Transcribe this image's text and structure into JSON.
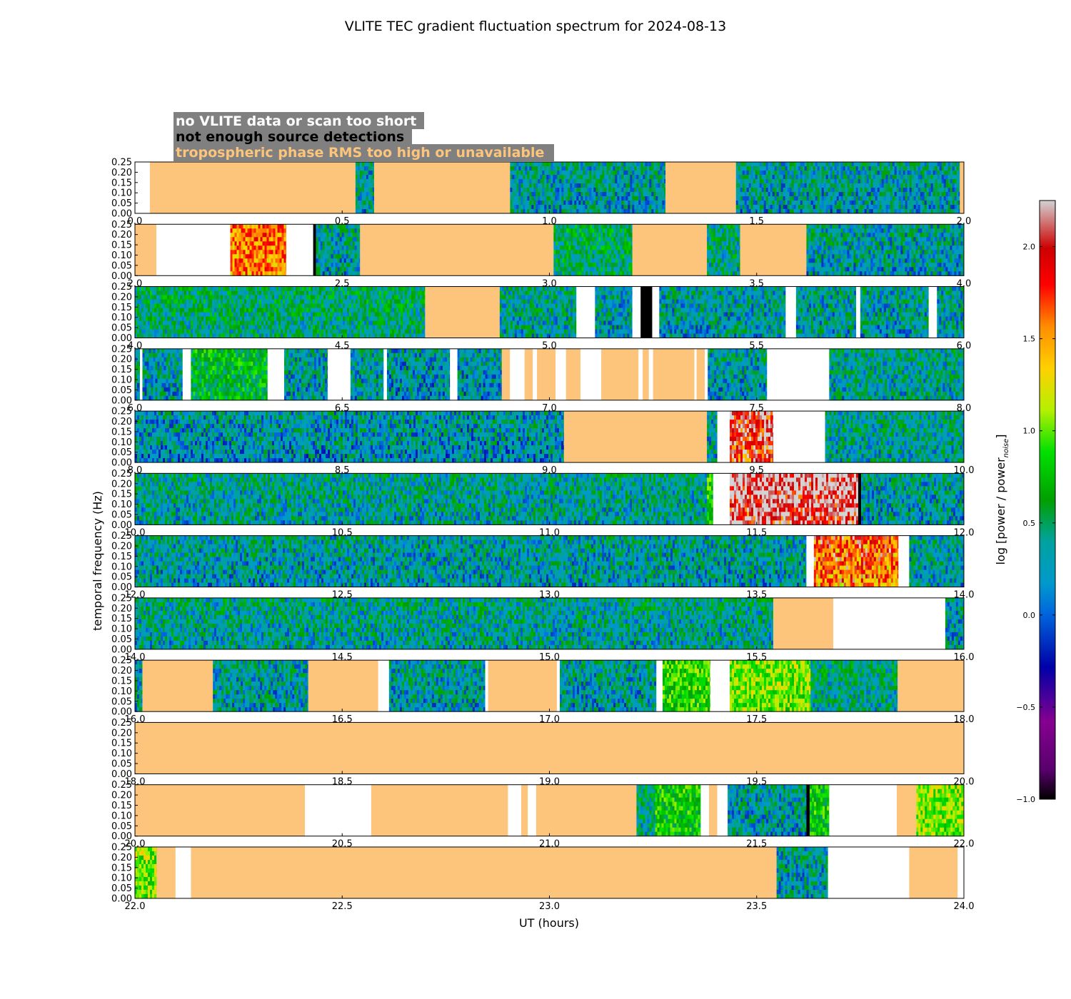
{
  "chart_data": {
    "type": "heatmap",
    "title": "VLITE TEC gradient fluctuation spectrum for 2024-08-13",
    "xlabel": "UT (hours)",
    "ylabel": "temporal frequency (Hz)",
    "colorbar_label": "log [power / power",
    "colorbar_label_subscript": "noise",
    "colorbar_label_close": "]",
    "colorbar_range": [
      -1.0,
      2.25
    ],
    "colorbar_ticks": [
      "−1.0",
      "−0.5",
      "0.0",
      "0.5",
      "1.0",
      "1.5",
      "2.0"
    ],
    "colorbar_tick_values": [
      -1.0,
      -0.5,
      0.0,
      0.5,
      1.0,
      1.5,
      2.0
    ],
    "ylim": [
      0,
      0.25
    ],
    "y_ticks": [
      "0.25",
      "0.20",
      "0.15",
      "0.10",
      "0.05",
      "0.00"
    ],
    "y_tick_values": [
      0.25,
      0.2,
      0.15,
      0.1,
      0.05,
      0.0
    ],
    "legend": [
      {
        "label": "no VLITE data or scan too short",
        "color": "#ffffff",
        "flag": "nodata"
      },
      {
        "label": "not enough source detections",
        "color": "#000000",
        "flag": "nodet"
      },
      {
        "label": "tropospheric phase RMS too high or unavailable",
        "color": "#fdc47c",
        "flag": "tropo"
      }
    ],
    "legend_background": "#808080",
    "flag_colors": {
      "nodata": "#ffffff",
      "nodet": "#000000",
      "tropo": "#fdc47c"
    },
    "panels": [
      {
        "xlim": [
          0,
          2
        ],
        "xticks": [
          "0.0",
          "0.5",
          "1.0",
          "1.5",
          "2.0"
        ],
        "segments": [
          [
            "nodata",
            0,
            0.036
          ],
          [
            "tropo",
            0.036,
            0.532
          ],
          [
            "spec",
            0.532,
            0.577,
            0.1
          ],
          [
            "tropo",
            0.577,
            0.905
          ],
          [
            "spec",
            0.905,
            1.28,
            0.1
          ],
          [
            "tropo",
            1.28,
            1.45
          ],
          [
            "spec",
            1.45,
            1.99,
            0.1
          ],
          [
            "tropo",
            1.99,
            2.0
          ]
        ]
      },
      {
        "xlim": [
          2,
          4
        ],
        "xticks": [
          "2.0",
          "2.5",
          "3.0",
          "3.5",
          "4.0"
        ],
        "segments": [
          [
            "tropo",
            2.0,
            2.052
          ],
          [
            "nodata",
            2.052,
            2.23
          ],
          [
            "spec",
            2.23,
            2.365,
            1.5
          ],
          [
            "nodata",
            2.365,
            2.43
          ],
          [
            "nodet",
            2.43,
            2.437
          ],
          [
            "spec",
            2.437,
            2.543,
            0.1
          ],
          [
            "tropo",
            2.543,
            3.01
          ],
          [
            "spec",
            3.01,
            3.2,
            0.3
          ],
          [
            "tropo",
            3.2,
            3.38
          ],
          [
            "spec",
            3.38,
            3.46,
            0.2
          ],
          [
            "tropo",
            3.46,
            3.62
          ],
          [
            "spec",
            3.62,
            4.0,
            0.1
          ]
        ]
      },
      {
        "xlim": [
          4,
          6
        ],
        "xticks": [
          "4.0",
          "4.5",
          "5.0",
          "5.5",
          "6.0"
        ],
        "segments": [
          [
            "spec",
            4.0,
            4.7,
            0.25
          ],
          [
            "tropo",
            4.7,
            4.88
          ],
          [
            "spec",
            4.88,
            5.065,
            0.15
          ],
          [
            "nodata",
            5.065,
            5.11
          ],
          [
            "spec",
            5.11,
            5.2,
            0.1
          ],
          [
            "nodata",
            5.2,
            5.22
          ],
          [
            "nodet",
            5.22,
            5.248
          ],
          [
            "nodata",
            5.248,
            5.265
          ],
          [
            "spec",
            5.265,
            5.57,
            0.1
          ],
          [
            "nodata",
            5.57,
            5.595
          ],
          [
            "spec",
            5.595,
            5.74,
            0.1
          ],
          [
            "nodata",
            5.74,
            5.75
          ],
          [
            "spec",
            5.75,
            5.915,
            0.1
          ],
          [
            "nodata",
            5.915,
            5.935
          ],
          [
            "spec",
            5.935,
            6.0,
            0.1
          ]
        ]
      },
      {
        "xlim": [
          6,
          8
        ],
        "xticks": [
          "6.0",
          "6.5",
          "7.0",
          "7.5",
          "8.0"
        ],
        "segments": [
          [
            "spec",
            6.0,
            6.012,
            0.1
          ],
          [
            "nodata",
            6.012,
            6.018
          ],
          [
            "spec",
            6.018,
            6.115,
            0.1
          ],
          [
            "nodata",
            6.115,
            6.135
          ],
          [
            "spec",
            6.135,
            6.32,
            0.45
          ],
          [
            "nodata",
            6.32,
            6.36
          ],
          [
            "spec",
            6.36,
            6.465,
            0.1
          ],
          [
            "nodata",
            6.465,
            6.52
          ],
          [
            "spec",
            6.52,
            6.6,
            0.1
          ],
          [
            "nodata",
            6.6,
            6.608
          ],
          [
            "spec",
            6.608,
            6.76,
            0.05
          ],
          [
            "nodata",
            6.76,
            6.778
          ],
          [
            "spec",
            6.778,
            6.885,
            0.05
          ],
          [
            "tropo",
            6.885,
            6.905
          ],
          [
            "nodata",
            6.905,
            6.94
          ],
          [
            "tropo",
            6.94,
            6.96
          ],
          [
            "nodata",
            6.96,
            6.97
          ],
          [
            "tropo",
            6.97,
            7.015
          ],
          [
            "nodata",
            7.015,
            7.04
          ],
          [
            "tropo",
            7.04,
            7.075
          ],
          [
            "nodata",
            7.075,
            7.125
          ],
          [
            "tropo",
            7.125,
            7.215
          ],
          [
            "nodata",
            7.215,
            7.225
          ],
          [
            "tropo",
            7.225,
            7.24
          ],
          [
            "nodata",
            7.24,
            7.25
          ],
          [
            "tropo",
            7.25,
            7.35
          ],
          [
            "nodata",
            7.35,
            7.355
          ],
          [
            "tropo",
            7.355,
            7.375
          ],
          [
            "nodata",
            7.375,
            7.382
          ],
          [
            "spec",
            7.382,
            7.525,
            0.1
          ],
          [
            "nodata",
            7.525,
            7.675
          ],
          [
            "spec",
            7.675,
            8.0,
            0.15
          ]
        ]
      },
      {
        "xlim": [
          8,
          10
        ],
        "xticks": [
          "8.0",
          "8.5",
          "9.0",
          "9.5",
          "10.0"
        ],
        "segments": [
          [
            "spec",
            8.0,
            9.035,
            0.05
          ],
          [
            "tropo",
            9.035,
            9.38
          ],
          [
            "spec",
            9.38,
            9.405,
            0.1
          ],
          [
            "nodata",
            9.405,
            9.435
          ],
          [
            "spec",
            9.435,
            9.54,
            1.7,
            "hot"
          ],
          [
            "nodata",
            9.54,
            9.665
          ],
          [
            "spec",
            9.665,
            10.0,
            0.15
          ]
        ]
      },
      {
        "xlim": [
          10,
          12
        ],
        "xticks": [
          "10.0",
          "10.5",
          "11.0",
          "11.5",
          "12.0"
        ],
        "segments": [
          [
            "spec",
            10.0,
            11.38,
            0.15
          ],
          [
            "spec",
            11.38,
            11.395,
            0.6
          ],
          [
            "nodata",
            11.395,
            11.435
          ],
          [
            "spec",
            11.435,
            11.745,
            1.9,
            "hot"
          ],
          [
            "nodet",
            11.745,
            11.752
          ],
          [
            "spec",
            11.752,
            12.0,
            0.1
          ]
        ]
      },
      {
        "xlim": [
          12,
          14
        ],
        "xticks": [
          "12.0",
          "12.5",
          "13.0",
          "13.5",
          "14.0"
        ],
        "segments": [
          [
            "spec",
            12.0,
            13.62,
            0.1
          ],
          [
            "nodata",
            13.62,
            13.638
          ],
          [
            "spec",
            13.638,
            13.842,
            1.4,
            "hot"
          ],
          [
            "nodata",
            13.842,
            13.868
          ],
          [
            "spec",
            13.868,
            14.0,
            0.1
          ]
        ]
      },
      {
        "xlim": [
          14,
          16
        ],
        "xticks": [
          "14.0",
          "14.5",
          "15.0",
          "15.5",
          "16.0"
        ],
        "segments": [
          [
            "spec",
            14.0,
            15.54,
            0.15
          ],
          [
            "tropo",
            15.54,
            15.685
          ],
          [
            "nodata",
            15.685,
            15.955
          ],
          [
            "spec",
            15.955,
            16.0,
            0.1
          ]
        ]
      },
      {
        "xlim": [
          16,
          18
        ],
        "xticks": [
          "16.0",
          "16.5",
          "17.0",
          "17.5",
          "18.0"
        ],
        "segments": [
          [
            "spec",
            16.0,
            16.018,
            0.1
          ],
          [
            "tropo",
            16.018,
            16.188
          ],
          [
            "spec",
            16.188,
            16.418,
            0.1
          ],
          [
            "tropo",
            16.418,
            16.587
          ],
          [
            "nodata",
            16.587,
            16.613
          ],
          [
            "spec",
            16.613,
            16.845,
            0.1
          ],
          [
            "nodata",
            16.845,
            16.852
          ],
          [
            "tropo",
            16.852,
            17.018
          ],
          [
            "nodata",
            17.018,
            17.025
          ],
          [
            "spec",
            17.025,
            17.258,
            0.1
          ],
          [
            "nodata",
            17.258,
            17.273
          ],
          [
            "spec",
            17.273,
            17.388,
            0.7
          ],
          [
            "nodata",
            17.388,
            17.435
          ],
          [
            "spec",
            17.435,
            17.63,
            0.9
          ],
          [
            "spec",
            17.63,
            17.84,
            0.2
          ],
          [
            "tropo",
            17.84,
            18.0
          ]
        ]
      },
      {
        "xlim": [
          18,
          20
        ],
        "xticks": [
          "18.0",
          "18.5",
          "19.0",
          "19.5",
          "20.0"
        ],
        "segments": [
          [
            "tropo",
            18.0,
            20.0
          ]
        ]
      },
      {
        "xlim": [
          20,
          22
        ],
        "xticks": [
          "20.0",
          "20.5",
          "21.0",
          "21.5",
          "22.0"
        ],
        "segments": [
          [
            "tropo",
            20.0,
            20.41
          ],
          [
            "nodata",
            20.41,
            20.57
          ],
          [
            "tropo",
            20.57,
            20.9
          ],
          [
            "nodata",
            20.9,
            20.932
          ],
          [
            "tropo",
            20.932,
            20.948
          ],
          [
            "nodata",
            20.948,
            20.968
          ],
          [
            "tropo",
            20.968,
            21.21
          ],
          [
            "spec",
            21.21,
            21.255,
            0.2
          ],
          [
            "spec",
            21.255,
            21.365,
            0.6
          ],
          [
            "nodata",
            21.365,
            21.385
          ],
          [
            "tropo",
            21.385,
            21.405
          ],
          [
            "nodata",
            21.405,
            21.43
          ],
          [
            "spec",
            21.43,
            21.62,
            0.1
          ],
          [
            "nodet",
            21.62,
            21.628
          ],
          [
            "spec",
            21.628,
            21.675,
            0.6
          ],
          [
            "nodata",
            21.675,
            21.838
          ],
          [
            "tropo",
            21.838,
            21.885
          ],
          [
            "spec",
            21.885,
            22.0,
            0.9
          ]
        ]
      },
      {
        "xlim": [
          22,
          24
        ],
        "xticks": [
          "22.0",
          "22.5",
          "23.0",
          "23.5",
          "24.0"
        ],
        "segments": [
          [
            "spec",
            22.0,
            22.052,
            0.9
          ],
          [
            "tropo",
            22.052,
            22.098
          ],
          [
            "nodata",
            22.098,
            22.135
          ],
          [
            "tropo",
            22.135,
            23.548
          ],
          [
            "spec",
            23.548,
            23.672,
            0.1
          ],
          [
            "nodata",
            23.672,
            23.868
          ],
          [
            "tropo",
            23.868,
            23.985
          ],
          [
            "nodata",
            23.985,
            24.0
          ]
        ]
      }
    ]
  }
}
